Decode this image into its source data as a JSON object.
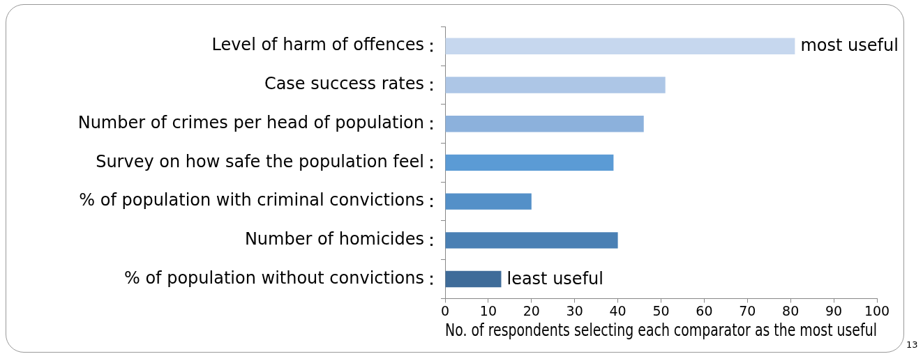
{
  "chart_data": {
    "type": "bar",
    "orientation": "horizontal",
    "xlabel": "No. of respondents selecting each comparator as the most useful",
    "categories": [
      "Level of harm of offences",
      "Case success rates",
      "Number of crimes per head of population",
      "Survey on how safe the population feel",
      "% of population with criminal convictions",
      "Number of homicides",
      "% of population without convictions"
    ],
    "values": [
      81,
      51,
      46,
      39,
      20,
      40,
      13
    ],
    "colors": [
      "#c6d7ee",
      "#adc6e6",
      "#8cb1dc",
      "#5b9bd5",
      "#5490c8",
      "#4a80b4",
      "#3f6c99"
    ],
    "xlim": [
      0,
      100
    ],
    "xticks": [
      0,
      10,
      20,
      30,
      40,
      50,
      60,
      70,
      80,
      90,
      100
    ],
    "grid": false,
    "legend": false,
    "annotations": [
      {
        "text": "most useful",
        "x": 81,
        "y": "Level of harm of offences"
      },
      {
        "text": "least useful",
        "x": 13,
        "y": "% of population without convictions"
      },
      "13"
    ]
  }
}
